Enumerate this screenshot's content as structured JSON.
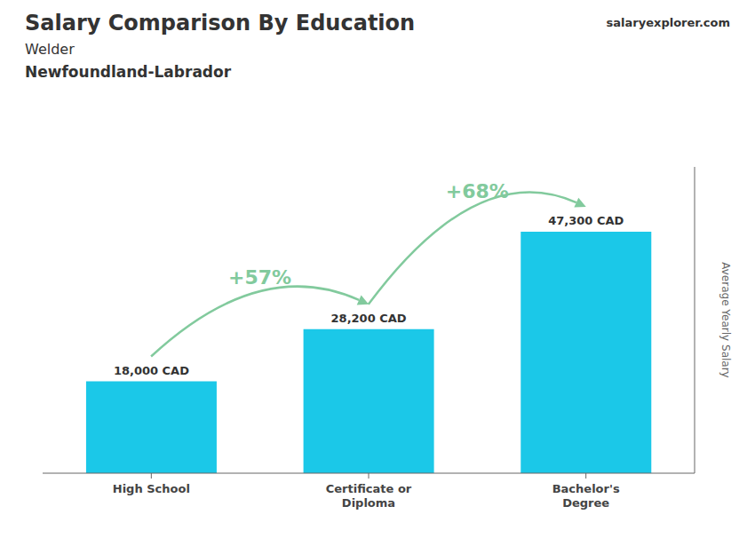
{
  "chart_data": {
    "type": "bar",
    "title": "Salary Comparison By Education",
    "subtitle": [
      "Welder",
      "Newfoundland-Labrador"
    ],
    "y_label": "Average Yearly Salary",
    "categories": [
      "High School",
      "Certificate or\nDiploma",
      "Bachelor's\nDegree"
    ],
    "values": [
      18000,
      28200,
      47300
    ],
    "value_labels": [
      "18,000 CAD",
      "28,200 CAD",
      "47,300 CAD"
    ],
    "data_labels": true,
    "color": "#1BC8E8",
    "ylim": [
      0,
      60000
    ],
    "tick_labels": "x",
    "grid": false,
    "annotations": [
      {
        "text": "+57%",
        "from": "High School",
        "to": "Certificate or\nDiploma"
      },
      {
        "text": "+68%",
        "from": "Certificate or\nDiploma",
        "to": "Bachelor's\nDegree"
      },
      {
        "text": "salary"
      },
      {
        "text": "explorer"
      },
      {
        "text": ".com"
      }
    ]
  }
}
